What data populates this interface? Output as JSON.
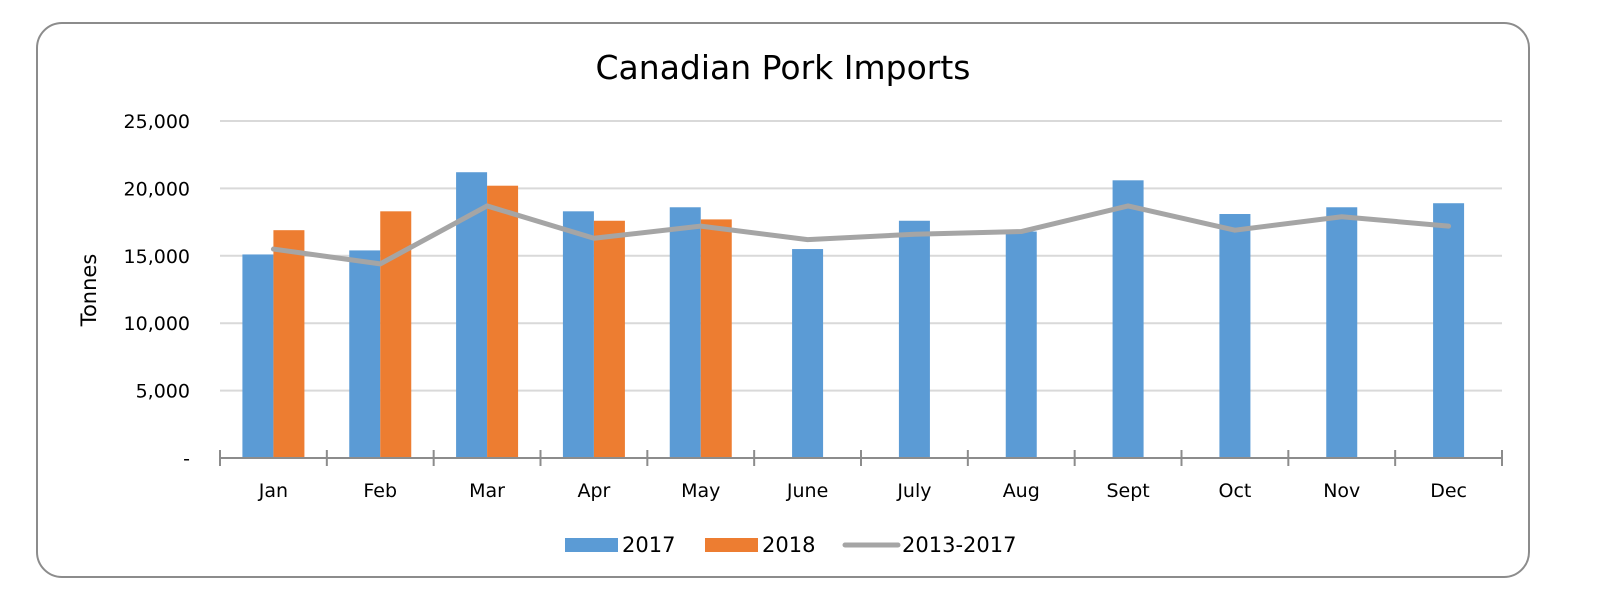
{
  "chart_data": {
    "type": "bar",
    "title": "Canadian Pork Imports",
    "xlabel": "",
    "ylabel": "Tonnes",
    "ylim": [
      0,
      25000
    ],
    "yticks": [
      0,
      5000,
      10000,
      15000,
      20000,
      25000
    ],
    "ytick_labels": [
      "-",
      "5,000",
      "10,000",
      "15,000",
      "20,000",
      "25,000"
    ],
    "grid": true,
    "legend_position": "bottom",
    "categories": [
      "Jan",
      "Feb",
      "Mar",
      "Apr",
      "May",
      "June",
      "July",
      "Aug",
      "Sept",
      "Oct",
      "Nov",
      "Dec"
    ],
    "series": [
      {
        "name": "2017",
        "kind": "bar",
        "color": "#5b9bd5",
        "values": [
          15100,
          15400,
          21200,
          18300,
          18600,
          15500,
          17600,
          16800,
          20600,
          18100,
          18600,
          18900
        ]
      },
      {
        "name": "2018",
        "kind": "bar",
        "color": "#ed7d31",
        "values": [
          16900,
          18300,
          20200,
          17600,
          17700,
          null,
          null,
          null,
          null,
          null,
          null,
          null
        ]
      },
      {
        "name": "2013-2017",
        "kind": "line",
        "color": "#a5a5a5",
        "values": [
          15500,
          14400,
          18700,
          16300,
          17200,
          16200,
          16600,
          16800,
          18700,
          16900,
          17900,
          17200
        ]
      }
    ]
  }
}
